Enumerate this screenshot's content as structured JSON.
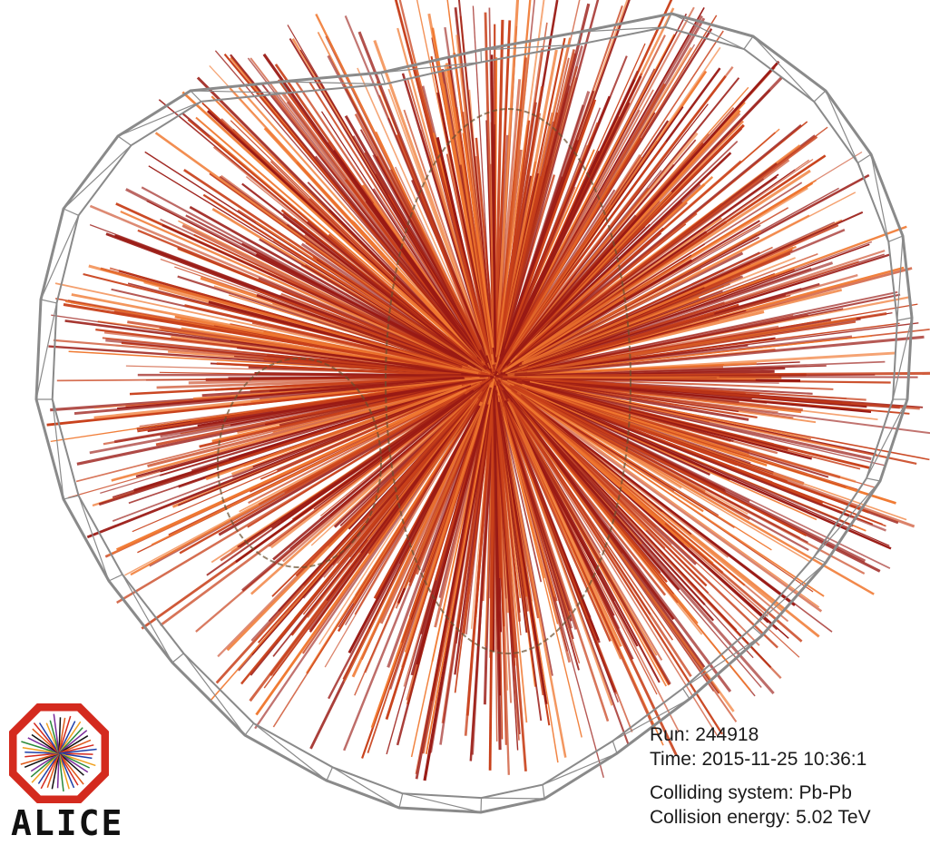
{
  "event_display": {
    "colors": {
      "track_dark": "#9a1a14",
      "track_mid": "#c8401a",
      "track_light": "#f07830",
      "detector_outline": "#8a8a8a",
      "inner_ring": "#6a5030"
    },
    "logo": {
      "word": "ALICE",
      "frame_color": "#d42a1e"
    },
    "info": {
      "run": "Run: 244918",
      "time": "Time: 2015-11-25 10:36:1",
      "system": "Colliding system: Pb-Pb",
      "energy": "Collision energy: 5.02 TeV"
    }
  }
}
